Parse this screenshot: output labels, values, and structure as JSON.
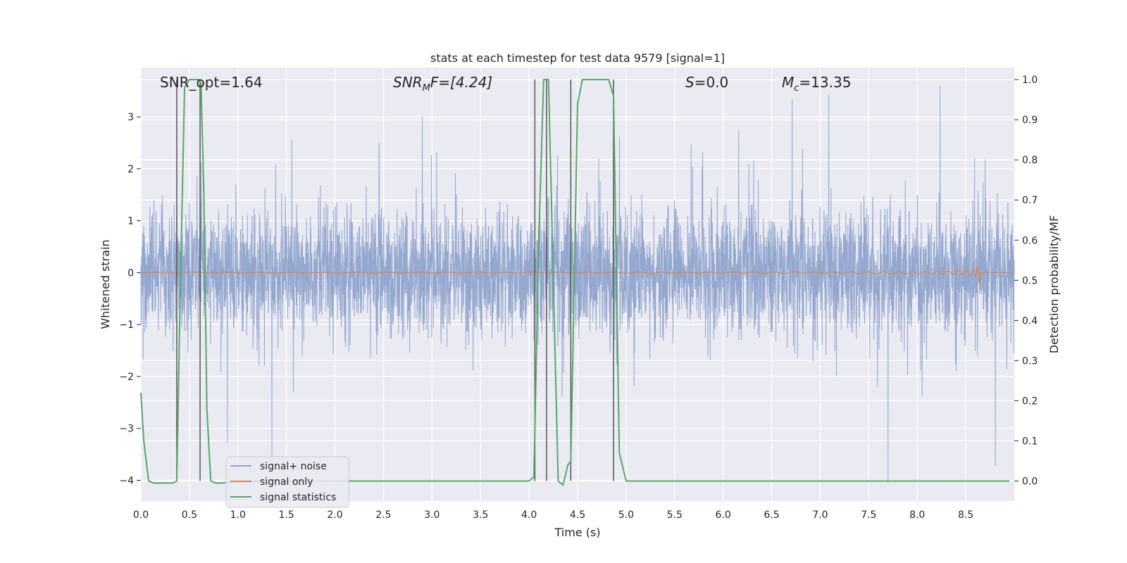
{
  "chart_data": {
    "type": "line",
    "title": "stats at each timestep for test data 9579 [signal=1]",
    "xlabel": "Time (s)",
    "ylabel_left": "Whitened strain",
    "ylabel_right": "Detection probability/MF",
    "xlim": [
      0,
      9.0
    ],
    "ylim_left": [
      -4.4,
      3.95
    ],
    "ylim_right": [
      -0.05,
      1.03
    ],
    "x_ticks": [
      "0.0",
      "0.5",
      "1.0",
      "1.5",
      "2.0",
      "2.5",
      "3.0",
      "3.5",
      "4.0",
      "4.5",
      "5.0",
      "5.5",
      "6.0",
      "6.5",
      "7.0",
      "7.5",
      "8.0",
      "8.5"
    ],
    "y_ticks_left": [
      "−4",
      "−3",
      "−2",
      "−1",
      "0",
      "1",
      "2",
      "3"
    ],
    "y_ticks_right": [
      "0.0",
      "0.1",
      "0.2",
      "0.3",
      "0.4",
      "0.5",
      "0.6",
      "0.7",
      "0.8",
      "0.9",
      "1.0"
    ],
    "grid": true,
    "legend_position": "lower-left",
    "annotations": {
      "snr_opt": "SNR_opt=1.64",
      "snr_mf_prefix": "SNR",
      "snr_mf_sub": "M",
      "snr_mf_suffix": "F=[4.24]",
      "s_prefix": "S",
      "s_suffix": "=0.0",
      "mc_prefix": "M",
      "mc_sub": "c",
      "mc_suffix": "=13.35"
    },
    "vertical_markers_s": [
      0.37,
      0.61,
      4.06,
      4.18,
      4.43,
      4.87
    ],
    "series": [
      {
        "name": "signal+ noise",
        "color": "#8fa3cc",
        "axis": "left",
        "noise_sigma": 0.6,
        "x_range": [
          0,
          9.0
        ]
      },
      {
        "name": "signal only",
        "color": "#dd8452",
        "axis": "left",
        "chirp_end_s": 8.65,
        "peak_amplitude": 0.3
      },
      {
        "name": "signal statistics",
        "color": "#55a868",
        "axis": "right",
        "x": [
          0.0,
          0.03,
          0.08,
          0.13,
          0.23,
          0.33,
          0.37,
          0.4,
          0.45,
          0.5,
          0.55,
          0.6,
          0.62,
          0.65,
          0.68,
          0.72,
          0.77,
          0.83,
          1.0,
          2.0,
          3.0,
          3.5,
          4.0,
          4.05,
          4.1,
          4.15,
          4.18,
          4.2,
          4.25,
          4.3,
          4.35,
          4.4,
          4.43,
          4.5,
          4.55,
          4.6,
          4.7,
          4.82,
          4.87,
          4.93,
          5.0,
          5.5,
          6.0,
          7.0,
          8.0,
          8.95
        ],
        "y": [
          0.22,
          0.1,
          0.0,
          -0.005,
          -0.005,
          -0.005,
          0.0,
          0.4,
          0.98,
          1.0,
          1.0,
          1.0,
          0.99,
          0.7,
          0.18,
          0.0,
          -0.005,
          -0.005,
          0.0,
          0.0,
          0.0,
          0.0,
          0.0,
          0.01,
          0.6,
          1.0,
          1.0,
          1.0,
          0.5,
          0.0,
          -0.01,
          0.04,
          0.05,
          0.94,
          1.0,
          1.0,
          1.0,
          1.0,
          0.96,
          0.07,
          0.0,
          0.0,
          0.0,
          0.0,
          0.0,
          0.0
        ]
      }
    ]
  }
}
